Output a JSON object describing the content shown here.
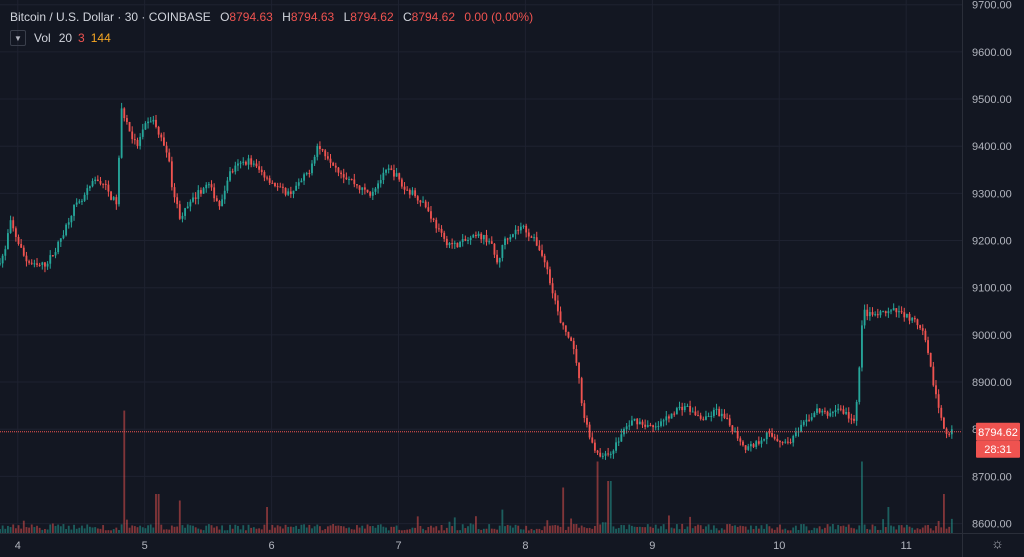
{
  "header": {
    "symbol": "Bitcoin / U.S. Dollar · 30 · COINBASE",
    "open_label": "O",
    "open": "8794.63",
    "high_label": "H",
    "high": "8794.63",
    "low_label": "L",
    "low": "8794.62",
    "close_label": "C",
    "close": "8794.62",
    "change": "0.00 (0.00%)"
  },
  "volume_legend": {
    "name": "Vol",
    "length": "20",
    "value1": "3",
    "value2": "144",
    "toggle_icon": "chevron-down-icon"
  },
  "price_tag": {
    "price": "8794.62",
    "countdown": "28:31"
  },
  "settings_icon": "gear-icon",
  "colors": {
    "background": "#131722",
    "up": "#26a69a",
    "down": "#ef5350",
    "grid": "#1e2230",
    "axis_text": "#b2b5be"
  },
  "chart_data": {
    "type": "candlestick",
    "title": "Bitcoin / U.S. Dollar · 30 · COINBASE",
    "ylim": [
      8580,
      9710
    ],
    "y_ticks": [
      8600,
      8700,
      8800,
      8900,
      9000,
      9100,
      9200,
      9300,
      9400,
      9500,
      9600,
      9700
    ],
    "y_tick_labels": [
      "8600.00",
      "8700.00",
      "8800.00",
      "8900.00",
      "9000.00",
      "9100.00",
      "9200.00",
      "9300.00",
      "9400.00",
      "9500.00",
      "9600.00",
      "9700.00"
    ],
    "x_range": [
      3.86,
      11.44
    ],
    "x_ticks": [
      4,
      5,
      6,
      7,
      8,
      9,
      10,
      11
    ],
    "x_tick_labels": [
      "4",
      "5",
      "6",
      "7",
      "8",
      "9",
      "10",
      "11"
    ],
    "last_price": 8794.62,
    "grid": true,
    "price_path": [
      [
        3.86,
        9150
      ],
      [
        3.92,
        9175
      ],
      [
        3.96,
        9240
      ],
      [
        4.02,
        9200
      ],
      [
        4.08,
        9160
      ],
      [
        4.16,
        9145
      ],
      [
        4.24,
        9150
      ],
      [
        4.32,
        9180
      ],
      [
        4.4,
        9230
      ],
      [
        4.46,
        9270
      ],
      [
        4.52,
        9280
      ],
      [
        4.58,
        9310
      ],
      [
        4.64,
        9330
      ],
      [
        4.7,
        9320
      ],
      [
        4.76,
        9290
      ],
      [
        4.8,
        9280
      ],
      [
        4.84,
        9480
      ],
      [
        4.88,
        9450
      ],
      [
        4.92,
        9420
      ],
      [
        4.96,
        9400
      ],
      [
        5.02,
        9440
      ],
      [
        5.08,
        9460
      ],
      [
        5.14,
        9420
      ],
      [
        5.2,
        9390
      ],
      [
        5.24,
        9310
      ],
      [
        5.3,
        9250
      ],
      [
        5.36,
        9270
      ],
      [
        5.44,
        9300
      ],
      [
        5.52,
        9320
      ],
      [
        5.58,
        9290
      ],
      [
        5.62,
        9270
      ],
      [
        5.68,
        9340
      ],
      [
        5.76,
        9360
      ],
      [
        5.84,
        9370
      ],
      [
        5.92,
        9350
      ],
      [
        6.0,
        9330
      ],
      [
        6.08,
        9310
      ],
      [
        6.16,
        9300
      ],
      [
        6.24,
        9320
      ],
      [
        6.32,
        9350
      ],
      [
        6.38,
        9400
      ],
      [
        6.46,
        9380
      ],
      [
        6.52,
        9360
      ],
      [
        6.58,
        9340
      ],
      [
        6.64,
        9330
      ],
      [
        6.72,
        9310
      ],
      [
        6.8,
        9300
      ],
      [
        6.88,
        9330
      ],
      [
        6.94,
        9350
      ],
      [
        7.0,
        9340
      ],
      [
        7.06,
        9310
      ],
      [
        7.14,
        9300
      ],
      [
        7.22,
        9280
      ],
      [
        7.3,
        9240
      ],
      [
        7.38,
        9200
      ],
      [
        7.46,
        9190
      ],
      [
        7.56,
        9200
      ],
      [
        7.66,
        9210
      ],
      [
        7.74,
        9200
      ],
      [
        7.8,
        9150
      ],
      [
        7.86,
        9205
      ],
      [
        7.94,
        9220
      ],
      [
        8.0,
        9230
      ],
      [
        8.06,
        9210
      ],
      [
        8.12,
        9190
      ],
      [
        8.18,
        9150
      ],
      [
        8.24,
        9090
      ],
      [
        8.3,
        9020
      ],
      [
        8.36,
        9000
      ],
      [
        8.42,
        8950
      ],
      [
        8.48,
        8830
      ],
      [
        8.56,
        8760
      ],
      [
        8.64,
        8740
      ],
      [
        8.72,
        8760
      ],
      [
        8.8,
        8800
      ],
      [
        8.88,
        8820
      ],
      [
        8.96,
        8810
      ],
      [
        9.04,
        8800
      ],
      [
        9.12,
        8820
      ],
      [
        9.2,
        8840
      ],
      [
        9.28,
        8850
      ],
      [
        9.36,
        8830
      ],
      [
        9.44,
        8820
      ],
      [
        9.52,
        8840
      ],
      [
        9.6,
        8820
      ],
      [
        9.68,
        8790
      ],
      [
        9.76,
        8760
      ],
      [
        9.84,
        8770
      ],
      [
        9.92,
        8790
      ],
      [
        10.0,
        8780
      ],
      [
        10.08,
        8770
      ],
      [
        10.16,
        8790
      ],
      [
        10.24,
        8820
      ],
      [
        10.32,
        8840
      ],
      [
        10.4,
        8830
      ],
      [
        10.48,
        8845
      ],
      [
        10.56,
        8830
      ],
      [
        10.62,
        8810
      ],
      [
        10.68,
        9050
      ],
      [
        10.76,
        9040
      ],
      [
        10.84,
        9045
      ],
      [
        10.92,
        9050
      ],
      [
        11.0,
        9045
      ],
      [
        11.08,
        9030
      ],
      [
        11.16,
        9000
      ],
      [
        11.22,
        8920
      ],
      [
        11.28,
        8840
      ],
      [
        11.34,
        8790
      ],
      [
        11.38,
        8795
      ]
    ],
    "volume_spikes": [
      [
        4.0,
        0.06
      ],
      [
        4.84,
        0.92
      ],
      [
        5.1,
        0.3
      ],
      [
        5.28,
        0.25
      ],
      [
        5.96,
        0.2
      ],
      [
        7.44,
        0.12
      ],
      [
        7.82,
        0.18
      ],
      [
        8.3,
        0.35
      ],
      [
        8.56,
        0.55
      ],
      [
        8.66,
        0.4
      ],
      [
        10.66,
        0.55
      ],
      [
        10.86,
        0.2
      ],
      [
        11.3,
        0.3
      ]
    ]
  }
}
